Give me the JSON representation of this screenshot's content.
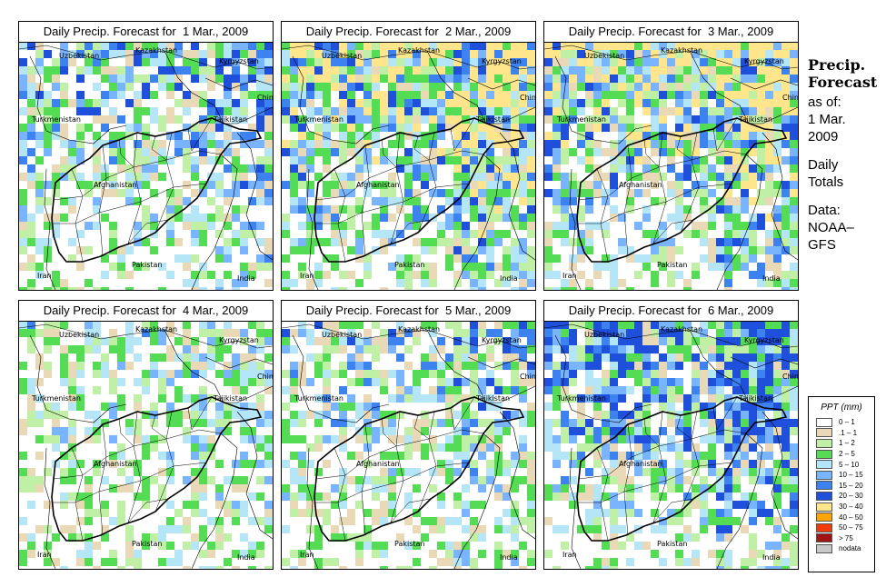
{
  "panels": [
    {
      "title": "Daily Precip. Forecast for  1 Mar., 2009",
      "intensity": 0.55,
      "seed": 11
    },
    {
      "title": "Daily Precip. Forecast for  2 Mar., 2009",
      "intensity": 1.0,
      "seed": 23
    },
    {
      "title": "Daily Precip. Forecast for  3 Mar., 2009",
      "intensity": 0.95,
      "seed": 37
    },
    {
      "title": "Daily Precip. Forecast for  4 Mar., 2009",
      "intensity": 0.25,
      "seed": 41
    },
    {
      "title": "Daily Precip. Forecast for  5 Mar., 2009",
      "intensity": 0.4,
      "seed": 53
    },
    {
      "title": "Daily Precip. Forecast for  6 Mar., 2009",
      "intensity": 0.85,
      "seed": 67
    }
  ],
  "map_labels": {
    "kazakhstan": "Kazakhstan",
    "uzbekistan": "Uzbekistan",
    "kyrgyzstan": "Kyrgyzstan",
    "china": "China",
    "turkmenistan": "Turkmenistan",
    "tajikistan": "Tajikistan",
    "afghanistan": "Afghanistan",
    "iran": "Iran",
    "pakistan": "Pakistan",
    "india": "India"
  },
  "sidebar": {
    "title_line1": "Precip.",
    "title_line2": "Forecast",
    "asof": "as of:",
    "date1": "1 Mar.",
    "date2": "2009",
    "totals1": "Daily",
    "totals2": "Totals",
    "data1": "Data:",
    "data2": "NOAA–",
    "data3": "GFS"
  },
  "legend": {
    "title": "PPT (mm)",
    "items": [
      {
        "label": "0 – 1",
        "color": "#ffffff"
      },
      {
        "label": ".1 – 1",
        "color": "#ead9b6"
      },
      {
        "label": "1 – 2",
        "color": "#bff0a6"
      },
      {
        "label": "2 – 5",
        "color": "#55dc55"
      },
      {
        "label": "5 – 10",
        "color": "#b4e6f8"
      },
      {
        "label": "10 – 15",
        "color": "#78b4ff"
      },
      {
        "label": "15 – 20",
        "color": "#3c82f0"
      },
      {
        "label": "20 – 30",
        "color": "#1e50dc"
      },
      {
        "label": "30 – 40",
        "color": "#ffe68c"
      },
      {
        "label": "40 – 50",
        "color": "#ffa500"
      },
      {
        "label": "50 – 75",
        "color": "#f03c0a"
      },
      {
        "label": "> 75",
        "color": "#a01414"
      },
      {
        "label": "nodata",
        "color": "#c8c8c8"
      }
    ]
  }
}
